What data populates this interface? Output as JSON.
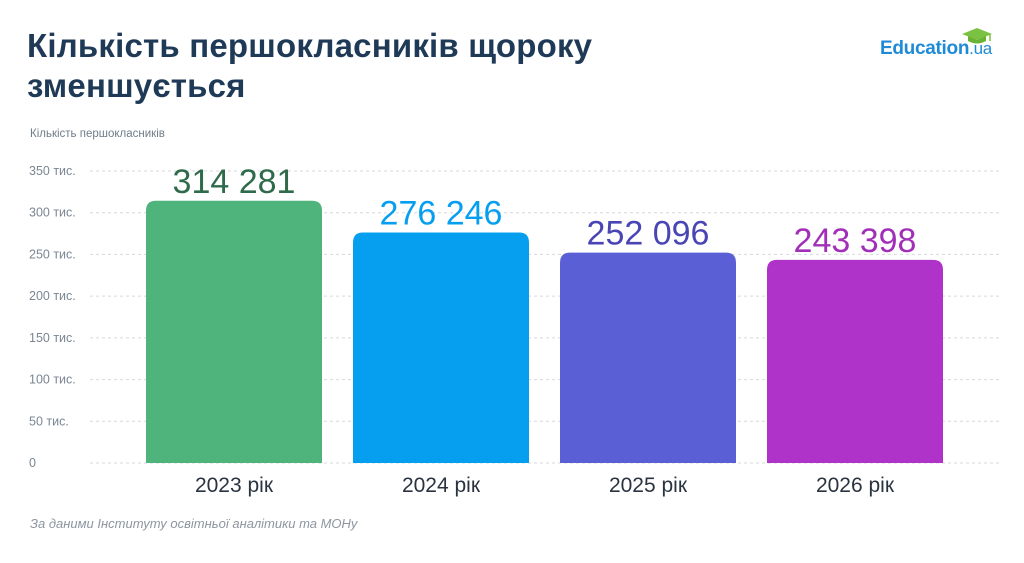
{
  "title_lines": [
    "Кількість першокласників щороку",
    "зменшується"
  ],
  "logo": {
    "text": "Education",
    "suffix": ".ua",
    "icon": "graduation-cap-icon"
  },
  "source": "За даними Інституту освітньої аналітики та МОНу",
  "colors": {
    "title": "#1f3a57",
    "logo": "#1f8ad8",
    "logo_cap": "#7cc242",
    "grid": "#d5d9de",
    "tick": "#7a8694"
  },
  "chart_data": {
    "type": "bar",
    "ylabel": "Кількість першокласників",
    "categories": [
      "2023 рік",
      "2024 рік",
      "2025 рік",
      "2026 рік"
    ],
    "values": [
      314281,
      276246,
      252096,
      243398
    ],
    "value_labels": [
      "314 281",
      "276 246",
      "252 096",
      "243 398"
    ],
    "bar_colors": [
      "#4fb37c",
      "#069ff0",
      "#5b5fd5",
      "#b033c9"
    ],
    "label_colors": [
      "#2f6b4a",
      "#069ff0",
      "#4a45b5",
      "#a12fb8"
    ],
    "ylim": [
      0,
      350000
    ],
    "yticks": [
      {
        "value": 0,
        "label": "0"
      },
      {
        "value": 50000,
        "label": "50 тис."
      },
      {
        "value": 100000,
        "label": "100 тис."
      },
      {
        "value": 150000,
        "label": "150 тис."
      },
      {
        "value": 200000,
        "label": "200 тис."
      },
      {
        "value": 250000,
        "label": "250 тис."
      },
      {
        "value": 300000,
        "label": "300 тис."
      },
      {
        "value": 350000,
        "label": "350 тис."
      }
    ],
    "grid": true,
    "legend": "none"
  }
}
